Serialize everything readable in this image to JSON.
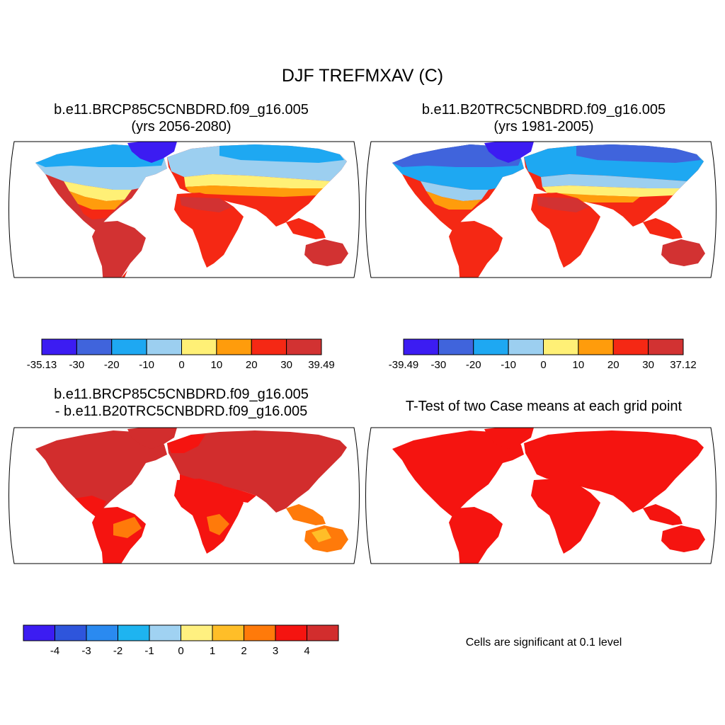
{
  "title": "DJF TREFMXAV (C)",
  "panels": [
    {
      "title_lines": [
        "b.e11.BRCP85C5CNBDRD.f09_g16.005",
        "(yrs 2056-2080)"
      ],
      "palette": [
        "#3c1cf2",
        "#4064dc",
        "#1ea8f2",
        "#9ccff0",
        "#fff076",
        "#ff9c0c",
        "#f52814",
        "#d23232"
      ],
      "tick_labels": [
        "-35.13",
        "-30",
        "-20",
        "-10",
        "0",
        "10",
        "20",
        "30",
        "39.49"
      ]
    },
    {
      "title_lines": [
        "b.e11.B20TRC5CNBDRD.f09_g16.005",
        "(yrs 1981-2005)"
      ],
      "palette": [
        "#3c1cf2",
        "#4064dc",
        "#1ea8f2",
        "#9ccff0",
        "#fff076",
        "#ff9c0c",
        "#f52814",
        "#d23232"
      ],
      "tick_labels": [
        "-39.49",
        "-30",
        "-20",
        "-10",
        "0",
        "10",
        "20",
        "30",
        "37.12"
      ]
    },
    {
      "title_lines": [
        "b.e11.BRCP85C5CNBDRD.f09_g16.005",
        "- b.e11.B20TRC5CNBDRD.f09_g16.005"
      ],
      "palette": [
        "#3c1cf2",
        "#2e55dc",
        "#2a8af0",
        "#1eb4f0",
        "#a0d2f2",
        "#fff080",
        "#ffbe28",
        "#ff7a0a",
        "#f51410",
        "#d22d2d"
      ],
      "tick_labels": [
        "-4",
        "-3",
        "-2",
        "-1",
        "0",
        "1",
        "2",
        "3",
        "4"
      ]
    },
    {
      "title_lines": [
        "T-Test of two Case means at each grid point"
      ],
      "note": "Cells are significant at 0.1 level"
    }
  ]
}
